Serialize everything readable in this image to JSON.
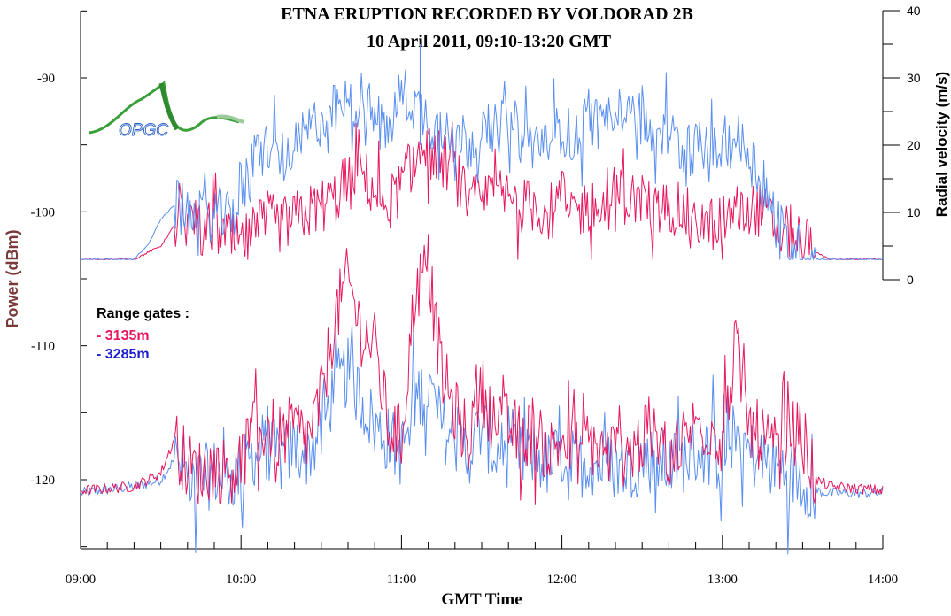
{
  "chart_data": {
    "type": "line",
    "title": "ETNA ERUPTION  RECORDED BY VOLDORAD 2B",
    "subtitle": "10 April 2011, 09:10-13:20 GMT",
    "xlabel": "GMT Time",
    "ylabel": "Power (dBm)",
    "y2label": "Radial velocity (m/s)",
    "x_ticks": [
      "09:00",
      "10:00",
      "11:00",
      "12:00",
      "13:00",
      "14:00"
    ],
    "xlim_minutes": [
      540,
      840
    ],
    "ylim": [
      -125,
      -85
    ],
    "y_ticks": [
      -90,
      -100,
      -110,
      -120
    ],
    "y2lim": [
      0,
      40
    ],
    "y2_ticks": [
      0,
      10,
      20,
      30,
      40
    ],
    "legend_title": "Range gates :",
    "series_colors": {
      "gate_3135m": "#e8175d",
      "gate_3285m": "#5a8ff0"
    },
    "series": [
      {
        "name": "- 3135m",
        "color": "#e8175d",
        "axis": "power",
        "x_minutes": [
          540,
          560,
          565,
          570,
          575,
          580,
          585,
          590,
          595,
          600,
          605,
          610,
          615,
          620,
          625,
          630,
          635,
          640,
          645,
          650,
          655,
          660,
          665,
          670,
          675,
          680,
          685,
          690,
          695,
          700,
          705,
          710,
          715,
          720,
          725,
          730,
          735,
          740,
          745,
          750,
          755,
          760,
          765,
          770,
          775,
          780,
          785,
          790,
          795,
          800,
          805,
          810,
          815,
          820,
          840
        ],
        "values": [
          -120.8,
          -120.5,
          -120,
          -119.5,
          -117,
          -119,
          -119.5,
          -119,
          -119.5,
          -118.5,
          -116.5,
          -116,
          -117,
          -116,
          -117,
          -114,
          -108,
          -105,
          -109,
          -110,
          -116,
          -117,
          -106,
          -104,
          -112,
          -115,
          -117,
          -113,
          -116,
          -116,
          -117,
          -116,
          -118,
          -117,
          -118,
          -117,
          -118,
          -118,
          -118,
          -117,
          -117,
          -118,
          -117,
          -116,
          -116,
          -117,
          -110,
          -116,
          -117,
          -118,
          -116,
          -117,
          -120,
          -120.5,
          -120.8
        ]
      },
      {
        "name": "- 3285m",
        "color": "#5a8ff0",
        "axis": "power",
        "x_minutes": [
          540,
          560,
          565,
          570,
          575,
          580,
          585,
          590,
          595,
          600,
          605,
          610,
          615,
          620,
          625,
          630,
          635,
          640,
          645,
          650,
          655,
          660,
          665,
          670,
          675,
          680,
          685,
          690,
          695,
          700,
          705,
          710,
          715,
          720,
          725,
          730,
          735,
          740,
          745,
          750,
          755,
          760,
          765,
          770,
          775,
          780,
          785,
          790,
          795,
          800,
          805,
          810,
          815,
          820,
          840
        ],
        "values": [
          -121,
          -120.5,
          -120.3,
          -120,
          -118.5,
          -119.5,
          -120,
          -119.5,
          -120,
          -119.5,
          -118,
          -117.5,
          -118.5,
          -117.5,
          -118,
          -116.5,
          -113,
          -112,
          -114,
          -116,
          -117,
          -118,
          -114,
          -113,
          -116,
          -117,
          -118,
          -116,
          -118,
          -118,
          -118.5,
          -118,
          -119,
          -118,
          -119,
          -118.5,
          -119,
          -119,
          -119,
          -118.5,
          -118.5,
          -119,
          -118.5,
          -118,
          -118,
          -118.5,
          -116,
          -118,
          -118.5,
          -119,
          -119.5,
          -120,
          -120.8,
          -121,
          -121
        ]
      },
      {
        "name": "- 3135m",
        "color": "#e8175d",
        "axis": "velocity",
        "x_minutes": [
          540,
          560,
          565,
          570,
          575,
          580,
          585,
          590,
          595,
          600,
          605,
          610,
          615,
          620,
          625,
          630,
          635,
          640,
          645,
          650,
          655,
          660,
          665,
          670,
          675,
          680,
          685,
          690,
          695,
          700,
          705,
          710,
          715,
          720,
          725,
          730,
          735,
          740,
          745,
          750,
          755,
          760,
          765,
          770,
          775,
          780,
          785,
          790,
          795,
          800,
          805,
          810,
          815,
          820,
          825,
          840
        ],
        "values": [
          3,
          3,
          4,
          5,
          8,
          9,
          7,
          8,
          6,
          5,
          7,
          9,
          8,
          9,
          10,
          11,
          12,
          14,
          16,
          13,
          11,
          14,
          18,
          19,
          18,
          16,
          11,
          12,
          13,
          12,
          11,
          11,
          10,
          12,
          10,
          11,
          10,
          13,
          12,
          12,
          10,
          11,
          10,
          9,
          8,
          9,
          10,
          11,
          10,
          8,
          7,
          6,
          4,
          3,
          3,
          3
        ]
      },
      {
        "name": "- 3285m",
        "color": "#5a8ff0",
        "axis": "velocity",
        "x_minutes": [
          540,
          560,
          565,
          570,
          575,
          580,
          585,
          590,
          595,
          600,
          605,
          610,
          615,
          620,
          625,
          630,
          635,
          640,
          645,
          650,
          655,
          660,
          665,
          670,
          675,
          680,
          685,
          690,
          695,
          700,
          705,
          710,
          715,
          720,
          725,
          730,
          735,
          740,
          745,
          750,
          755,
          760,
          765,
          770,
          775,
          780,
          785,
          790,
          795,
          800,
          805,
          810,
          815,
          820,
          825,
          840
        ],
        "values": [
          3,
          3,
          5,
          9,
          11,
          10,
          9,
          10,
          9,
          12,
          18,
          20,
          18,
          19,
          22,
          24,
          25,
          26,
          27,
          24,
          22,
          28,
          26,
          24,
          22,
          23,
          20,
          22,
          22,
          24,
          21,
          20,
          22,
          23,
          20,
          25,
          22,
          27,
          26,
          25,
          20,
          22,
          19,
          20,
          18,
          20,
          21,
          19,
          14,
          9,
          5,
          4,
          3,
          3,
          3,
          3
        ]
      }
    ]
  }
}
